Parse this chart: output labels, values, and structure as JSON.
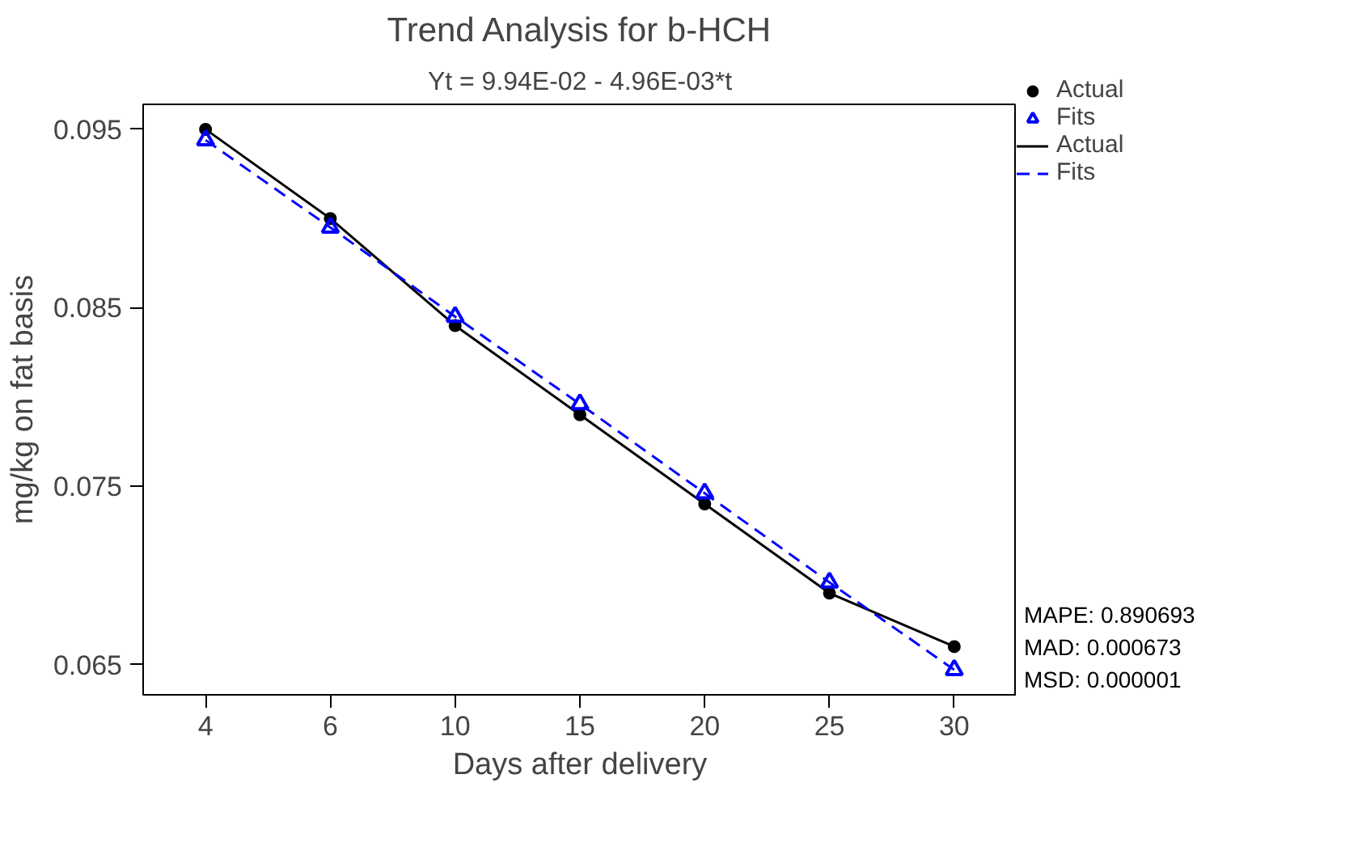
{
  "chart_data": {
    "type": "line",
    "title": "Trend Analysis for b-HCH",
    "subtitle": "Yt = 9.94E-02 - 4.96E-03*t",
    "xlabel": "Days after delivery",
    "ylabel": "mg/kg on fat basis",
    "categories": [
      "4",
      "6",
      "10",
      "15",
      "20",
      "25",
      "30"
    ],
    "series": [
      {
        "name": "Actual",
        "color": "#000000",
        "marker": "circle",
        "line_style": "solid",
        "values": [
          0.095,
          0.09,
          0.084,
          0.079,
          0.074,
          0.069,
          0.066
        ]
      },
      {
        "name": "Fits",
        "color": "#0000ff",
        "marker": "triangle",
        "line_style": "dashed",
        "values": [
          0.0944,
          0.0895,
          0.0845,
          0.0796,
          0.0746,
          0.0696,
          0.0647
        ]
      }
    ],
    "ylim": [
      0.0633,
      0.0964
    ],
    "yticks": [
      0.065,
      0.075,
      0.085,
      0.095
    ],
    "grid": false,
    "legend": "top right",
    "annotations": [
      "MAPE: 0.890693",
      "MAD: 0.000673",
      "MSD: 0.000001"
    ]
  }
}
